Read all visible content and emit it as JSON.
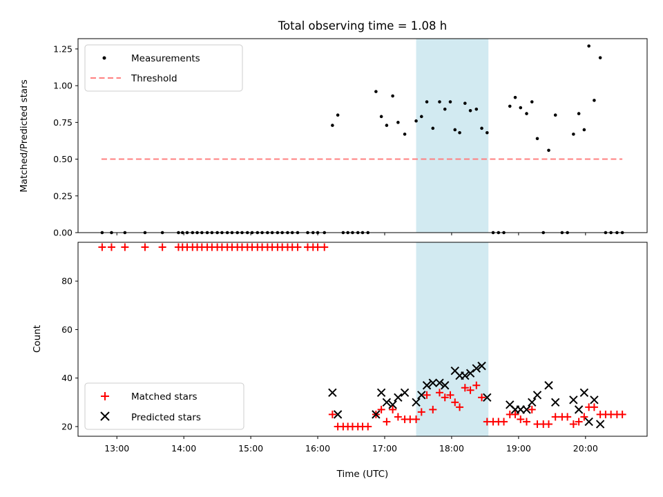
{
  "title": "Total observing time = 1.08 h",
  "colors": {
    "measurement": "#000000",
    "threshold": "#ff7f7f",
    "matched": "#ff0000",
    "predicted": "#000000",
    "span": "#add8e6"
  },
  "chart_data": [
    {
      "type": "scatter",
      "ylabel": "Matched/Predicted stars",
      "xlim": [
        12.42,
        20.92
      ],
      "ylim": [
        0,
        1.32
      ],
      "yticks": [
        0,
        0.25,
        0.5,
        0.75,
        1.0,
        1.25
      ],
      "ytick_labels": [
        "0.00",
        "0.25",
        "0.50",
        "0.75",
        "1.00",
        "1.25"
      ],
      "highlight_span": [
        17.47,
        18.55
      ],
      "legend": {
        "position": "upper-left",
        "entries": [
          "Measurements",
          "Threshold"
        ]
      },
      "threshold": {
        "name": "Threshold",
        "y": 0.5,
        "x": [
          12.77,
          20.55
        ]
      },
      "series": [
        {
          "name": "Measurements",
          "points": [
            [
              12.78,
              0
            ],
            [
              12.92,
              0
            ],
            [
              13.12,
              0
            ],
            [
              13.42,
              0
            ],
            [
              13.68,
              0
            ],
            [
              13.92,
              0
            ],
            [
              13.98,
              0
            ],
            [
              14.05,
              0
            ],
            [
              14.13,
              0
            ],
            [
              14.2,
              0
            ],
            [
              14.27,
              0
            ],
            [
              14.35,
              0
            ],
            [
              14.42,
              0
            ],
            [
              14.5,
              0
            ],
            [
              14.57,
              0
            ],
            [
              14.65,
              0
            ],
            [
              14.72,
              0
            ],
            [
              14.8,
              0
            ],
            [
              14.87,
              0
            ],
            [
              14.95,
              0
            ],
            [
              15.02,
              0
            ],
            [
              15.1,
              0
            ],
            [
              15.17,
              0
            ],
            [
              15.25,
              0
            ],
            [
              15.32,
              0
            ],
            [
              15.4,
              0
            ],
            [
              15.47,
              0
            ],
            [
              15.55,
              0
            ],
            [
              15.62,
              0
            ],
            [
              15.7,
              0
            ],
            [
              15.85,
              0
            ],
            [
              15.93,
              0
            ],
            [
              16.0,
              0
            ],
            [
              16.1,
              0
            ],
            [
              16.22,
              0.73
            ],
            [
              16.3,
              0.8
            ],
            [
              16.38,
              0
            ],
            [
              16.45,
              0
            ],
            [
              16.52,
              0
            ],
            [
              16.6,
              0
            ],
            [
              16.67,
              0
            ],
            [
              16.75,
              0
            ],
            [
              16.87,
              0.96
            ],
            [
              16.95,
              0.79
            ],
            [
              17.03,
              0.73
            ],
            [
              17.12,
              0.93
            ],
            [
              17.2,
              0.75
            ],
            [
              17.3,
              0.67
            ],
            [
              17.47,
              0.76
            ],
            [
              17.55,
              0.79
            ],
            [
              17.63,
              0.89
            ],
            [
              17.72,
              0.71
            ],
            [
              17.82,
              0.89
            ],
            [
              17.9,
              0.84
            ],
            [
              17.98,
              0.89
            ],
            [
              18.05,
              0.7
            ],
            [
              18.12,
              0.68
            ],
            [
              18.2,
              0.88
            ],
            [
              18.28,
              0.83
            ],
            [
              18.37,
              0.84
            ],
            [
              18.45,
              0.71
            ],
            [
              18.53,
              0.68
            ],
            [
              18.62,
              0
            ],
            [
              18.7,
              0
            ],
            [
              18.78,
              0
            ],
            [
              18.87,
              0.86
            ],
            [
              18.95,
              0.92
            ],
            [
              19.03,
              0.85
            ],
            [
              19.12,
              0.81
            ],
            [
              19.2,
              0.89
            ],
            [
              19.28,
              0.64
            ],
            [
              19.37,
              0
            ],
            [
              19.45,
              0.56
            ],
            [
              19.55,
              0.8
            ],
            [
              19.65,
              0
            ],
            [
              19.73,
              0
            ],
            [
              19.82,
              0.67
            ],
            [
              19.9,
              0.81
            ],
            [
              19.98,
              0.7
            ],
            [
              20.05,
              1.27
            ],
            [
              20.13,
              0.9
            ],
            [
              20.22,
              1.19
            ],
            [
              20.3,
              0
            ],
            [
              20.38,
              0
            ],
            [
              20.47,
              0
            ],
            [
              20.55,
              0
            ]
          ]
        }
      ]
    },
    {
      "type": "scatter",
      "ylabel": "Count",
      "xlabel": "Time (UTC)",
      "xlim": [
        12.42,
        20.92
      ],
      "ylim": [
        16,
        96
      ],
      "yticks": [
        20,
        40,
        60,
        80
      ],
      "ytick_labels": [
        "20",
        "40",
        "60",
        "80"
      ],
      "xticks": [
        13,
        14,
        15,
        16,
        17,
        18,
        19,
        20
      ],
      "xtick_labels": [
        "13:00",
        "14:00",
        "15:00",
        "16:00",
        "17:00",
        "18:00",
        "19:00",
        "20:00"
      ],
      "highlight_span": [
        17.47,
        18.55
      ],
      "legend": {
        "position": "lower-left",
        "entries": [
          "Matched stars",
          "Predicted stars"
        ]
      },
      "series": [
        {
          "name": "Matched stars",
          "marker": "plus",
          "points": [
            [
              12.78,
              94
            ],
            [
              12.92,
              94
            ],
            [
              13.12,
              94
            ],
            [
              13.42,
              94
            ],
            [
              13.68,
              94
            ],
            [
              13.92,
              94
            ],
            [
              13.98,
              94
            ],
            [
              14.05,
              94
            ],
            [
              14.13,
              94
            ],
            [
              14.2,
              94
            ],
            [
              14.27,
              94
            ],
            [
              14.35,
              94
            ],
            [
              14.42,
              94
            ],
            [
              14.5,
              94
            ],
            [
              14.57,
              94
            ],
            [
              14.65,
              94
            ],
            [
              14.72,
              94
            ],
            [
              14.8,
              94
            ],
            [
              14.87,
              94
            ],
            [
              14.95,
              94
            ],
            [
              15.02,
              94
            ],
            [
              15.1,
              94
            ],
            [
              15.17,
              94
            ],
            [
              15.25,
              94
            ],
            [
              15.32,
              94
            ],
            [
              15.4,
              94
            ],
            [
              15.47,
              94
            ],
            [
              15.55,
              94
            ],
            [
              15.62,
              94
            ],
            [
              15.7,
              94
            ],
            [
              15.85,
              94
            ],
            [
              15.93,
              94
            ],
            [
              16.0,
              94
            ],
            [
              16.1,
              94
            ],
            [
              16.22,
              25
            ],
            [
              16.3,
              20
            ],
            [
              16.38,
              20
            ],
            [
              16.45,
              20
            ],
            [
              16.52,
              20
            ],
            [
              16.6,
              20
            ],
            [
              16.67,
              20
            ],
            [
              16.75,
              20
            ],
            [
              16.87,
              25
            ],
            [
              16.95,
              27
            ],
            [
              17.03,
              22
            ],
            [
              17.12,
              27
            ],
            [
              17.2,
              24
            ],
            [
              17.3,
              23
            ],
            [
              17.38,
              23
            ],
            [
              17.47,
              23
            ],
            [
              17.55,
              26
            ],
            [
              17.63,
              33
            ],
            [
              17.72,
              27
            ],
            [
              17.82,
              34
            ],
            [
              17.9,
              32
            ],
            [
              17.98,
              33
            ],
            [
              18.05,
              30
            ],
            [
              18.12,
              28
            ],
            [
              18.2,
              36
            ],
            [
              18.28,
              35
            ],
            [
              18.37,
              37
            ],
            [
              18.45,
              32
            ],
            [
              18.53,
              22
            ],
            [
              18.62,
              22
            ],
            [
              18.7,
              22
            ],
            [
              18.78,
              22
            ],
            [
              18.87,
              25
            ],
            [
              18.95,
              25
            ],
            [
              19.03,
              23
            ],
            [
              19.12,
              22
            ],
            [
              19.2,
              27
            ],
            [
              19.28,
              21
            ],
            [
              19.37,
              21
            ],
            [
              19.45,
              21
            ],
            [
              19.55,
              24
            ],
            [
              19.65,
              24
            ],
            [
              19.73,
              24
            ],
            [
              19.82,
              21
            ],
            [
              19.9,
              22
            ],
            [
              19.98,
              24
            ],
            [
              20.05,
              28
            ],
            [
              20.13,
              28
            ],
            [
              20.22,
              25
            ],
            [
              20.3,
              25
            ],
            [
              20.38,
              25
            ],
            [
              20.47,
              25
            ],
            [
              20.55,
              25
            ]
          ]
        },
        {
          "name": "Predicted stars",
          "marker": "x",
          "points": [
            [
              16.22,
              34
            ],
            [
              16.3,
              25
            ],
            [
              16.87,
              25
            ],
            [
              16.95,
              34
            ],
            [
              17.03,
              30
            ],
            [
              17.12,
              29
            ],
            [
              17.2,
              32
            ],
            [
              17.3,
              34
            ],
            [
              17.47,
              30
            ],
            [
              17.55,
              33
            ],
            [
              17.63,
              37
            ],
            [
              17.72,
              38
            ],
            [
              17.82,
              38
            ],
            [
              17.9,
              37
            ],
            [
              18.05,
              43
            ],
            [
              18.12,
              41
            ],
            [
              18.2,
              41
            ],
            [
              18.28,
              42
            ],
            [
              18.37,
              44
            ],
            [
              18.45,
              45
            ],
            [
              18.53,
              32
            ],
            [
              18.87,
              29
            ],
            [
              18.95,
              27
            ],
            [
              19.03,
              27
            ],
            [
              19.12,
              27
            ],
            [
              19.2,
              30
            ],
            [
              19.28,
              33
            ],
            [
              19.45,
              37
            ],
            [
              19.55,
              30
            ],
            [
              19.82,
              31
            ],
            [
              19.9,
              27
            ],
            [
              19.98,
              34
            ],
            [
              20.05,
              22
            ],
            [
              20.13,
              31
            ],
            [
              20.22,
              21
            ]
          ]
        }
      ]
    }
  ]
}
